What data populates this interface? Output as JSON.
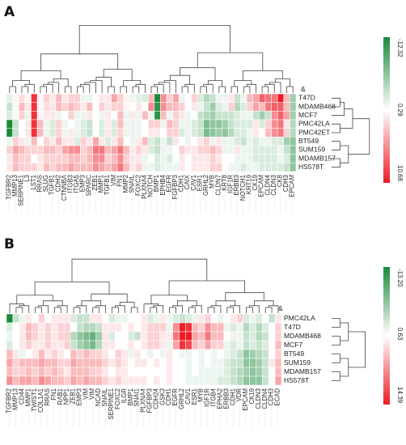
{
  "chart_data": [
    {
      "type": "heatmap",
      "panel_label": "A",
      "color_scale": {
        "max_label": "-12.32",
        "mid_label": "0.29",
        "min_label": "10.68",
        "max_color": "#1a8a3a",
        "mid_color": "#ffffff",
        "min_color": "#ee1b24"
      },
      "row_dendrogram_marker": "&",
      "rows": [
        "T47D",
        "MDAMB468",
        "MCF7",
        "PMC42LA",
        "PMC42ET",
        "BT549",
        "SUM159",
        "MDAMB157",
        "HS578T"
      ],
      "columns": [
        "TGFBR2",
        "MMP13",
        "SERPINE1",
        "L3",
        "LST1",
        "RRAS",
        "SLUG",
        "TGFB1",
        "CDH2",
        "CTNNBA",
        "ITGB3",
        "ITGA5",
        "EMP3",
        "SPARC",
        "ZEB1",
        "MMP1",
        "TGFB1",
        "VIM",
        "FN1",
        "MMP2",
        "SNAIL",
        "FOXC2",
        "PLXNA4",
        "NOTCH",
        "BMP1",
        "EPHB4",
        "EGFR",
        "FGFBP3",
        "CDH1",
        "CAIX",
        "CAV1",
        "ESR1",
        "GRHL2",
        "MYB",
        "CLDN7",
        "KRT8",
        "IGF1R",
        "ERBB3",
        "NOTCH1",
        "KRT19",
        "CK19",
        "EPCAM",
        "CLDN4",
        "CLDN3",
        "CK8",
        "CDH3",
        "EPCAM"
      ],
      "values": [
        [
          -1.5,
          0.5,
          1.5,
          0.5,
          9,
          0.5,
          2,
          1,
          3,
          1,
          2,
          2,
          -1,
          -1,
          0,
          1,
          1,
          4,
          2,
          0.5,
          -1,
          -1.5,
          -2,
          3,
          -12,
          5,
          2,
          4,
          -1,
          0,
          2,
          -2,
          -4,
          -3,
          -1,
          -1,
          1,
          -3,
          -1,
          3,
          4,
          7,
          6,
          6,
          10,
          3,
          -5
        ],
        [
          -3,
          -0.5,
          3,
          1,
          9,
          0.5,
          1.5,
          1,
          3,
          2,
          3,
          2,
          1,
          3,
          0,
          2,
          1,
          2,
          2,
          0.5,
          0,
          1,
          0,
          5,
          -11,
          5,
          3,
          3,
          2,
          0,
          1,
          -1,
          -3,
          -5,
          -2,
          -1,
          2,
          -4,
          -2,
          2,
          4,
          3,
          6,
          7,
          7,
          3,
          -5
        ],
        [
          -2,
          -0.5,
          2,
          -1,
          9,
          0.5,
          1,
          1,
          -1,
          0,
          2,
          -1,
          -1,
          1,
          0,
          -1,
          1,
          0,
          3,
          -1,
          1,
          -1,
          3,
          -1,
          -11,
          3,
          -1,
          2,
          1,
          -1,
          0,
          -3,
          -4,
          -5,
          -3,
          -3,
          -3,
          -2,
          -1,
          -1,
          -3,
          -5,
          -3,
          5,
          7,
          4,
          -5
        ],
        [
          -12,
          -3,
          0,
          1,
          9,
          3,
          -1,
          -2,
          2,
          -1,
          0,
          -1,
          -2,
          -3,
          0,
          -2,
          1,
          -2,
          3,
          -1,
          -1,
          -1,
          0,
          2,
          2,
          -1,
          3,
          2,
          -1,
          -1,
          -2,
          -3,
          -7,
          -6,
          -6,
          -5,
          -3,
          -2,
          -2,
          -2,
          1,
          -2,
          2,
          5,
          6,
          1,
          -4
        ],
        [
          -12,
          -3,
          0,
          1,
          9,
          3,
          -1,
          -2,
          2,
          -1,
          1,
          -1,
          -2,
          -3,
          0,
          -2,
          1,
          -2,
          2,
          -1,
          -1,
          -1,
          0,
          1,
          1,
          0,
          2,
          2,
          -2,
          -1,
          -2,
          -3,
          -7,
          -6,
          -5,
          -6,
          -4,
          -2,
          -2,
          -1,
          1,
          0,
          3,
          5,
          6,
          2,
          -4
        ],
        [
          -1,
          2,
          1,
          -1,
          3,
          0,
          2,
          1,
          3,
          1,
          1,
          -2,
          2,
          1,
          4,
          1,
          -2,
          1,
          3,
          0,
          -1,
          1,
          3,
          -2,
          -3,
          -1,
          -3,
          1,
          0,
          -1,
          0,
          1,
          2,
          -1,
          1,
          -1,
          -1,
          -2,
          -3,
          -1,
          -2,
          -1,
          -1,
          -2,
          -2,
          -5,
          -6
        ],
        [
          2,
          4,
          3,
          2,
          2,
          2,
          3,
          3,
          2,
          4,
          5,
          5,
          2,
          3,
          6,
          6,
          3,
          4,
          6,
          3,
          1,
          2,
          1,
          -2,
          -3,
          -1,
          -1,
          0,
          2,
          1,
          1,
          2,
          2,
          3,
          2,
          -1,
          -1,
          1,
          -1,
          -1,
          -2,
          -2,
          -2,
          -2,
          -1,
          -3,
          -6
        ],
        [
          1,
          3,
          2,
          2,
          0,
          1,
          2,
          2,
          2,
          2,
          3,
          3,
          2,
          3,
          5,
          5,
          2,
          3,
          5,
          2,
          1,
          1,
          -1,
          0,
          -2,
          -1,
          -2,
          0,
          1,
          0,
          1,
          1,
          1,
          2,
          1,
          0,
          0,
          -1,
          -1,
          -1,
          -2,
          -2,
          -2,
          -2,
          -1,
          -2,
          -6
        ],
        [
          1,
          3,
          2,
          2,
          2,
          1,
          3,
          2,
          3,
          3,
          4,
          3,
          3,
          3,
          5,
          4,
          3,
          4,
          6,
          3,
          1,
          2,
          -1,
          -1,
          -2,
          -1,
          -1,
          -1,
          1,
          0,
          1,
          1,
          1,
          2,
          2,
          0,
          -1,
          -1,
          -2,
          -1,
          -1,
          -2,
          -2,
          -2,
          -2,
          -3,
          -6
        ]
      ]
    },
    {
      "type": "heatmap",
      "panel_label": "B",
      "color_scale": {
        "max_label": "-13.20",
        "mid_label": "0.63",
        "min_label": "14.39",
        "max_color": "#1a8a3a",
        "mid_color": "#ffffff",
        "min_color": "#ee1b24"
      },
      "row_dendrogram_marker": "&",
      "rows": [
        "PMC42LA",
        "T47D",
        "MDAMB468",
        "MCF7",
        "BT549",
        "SUM159",
        "MDAMB157",
        "HS578T"
      ],
      "columns": [
        "TGFBR2",
        "MMP13",
        "CD44",
        "MMP1",
        "TWIST1",
        "COL1A1",
        "RRAS",
        "FN1",
        "RAB1",
        "NPP1",
        "ZEB1",
        "EMP3",
        "VIM",
        "VIM",
        "NCAD",
        "SNAIL",
        "SERPINE1",
        "FOXC2",
        "ILGR",
        "BMP1",
        "SNAI1",
        "PLXNA4",
        "FGFBP3",
        "CDH24",
        "GSK3",
        "CDH1",
        "EGFR",
        "GRHL2",
        "CAV1",
        "ESR1",
        "MYB",
        "IGF1R",
        "ITGB4",
        "EPHA2",
        "ERBB3",
        "CDH1",
        "VDR",
        "EPCAM",
        "CK19",
        "CLDN3",
        "CLDN4",
        "CDH3",
        "ECAD"
      ],
      "values": [
        [
          -13,
          -3,
          -1,
          1,
          0,
          2,
          0,
          1,
          1,
          1,
          -2,
          -3,
          -3,
          1,
          1,
          0,
          -2,
          -1,
          -1,
          0,
          0,
          1,
          -2,
          -1,
          1,
          -1,
          -2,
          -3,
          -2,
          -1,
          1,
          2,
          0,
          -1,
          0,
          1,
          2,
          -2,
          -1,
          -2,
          0,
          -3,
          1
        ],
        [
          -2,
          0,
          1,
          3,
          2,
          1,
          2,
          1,
          2,
          2,
          0,
          -3,
          -4,
          -4,
          -3,
          1,
          1,
          1,
          0,
          1,
          0,
          1,
          2,
          2,
          2,
          -1,
          5,
          10,
          9,
          3,
          2,
          5,
          3,
          3,
          -1,
          -2,
          -1,
          -4,
          -2,
          -4,
          -2,
          0,
          2
        ],
        [
          -1,
          0,
          1,
          3,
          2,
          1,
          2,
          1,
          2,
          2,
          -4,
          -6,
          -7,
          -8,
          -5,
          1,
          -2,
          0,
          0,
          -2,
          -3,
          1,
          2,
          2,
          1,
          1,
          6,
          11,
          10,
          4,
          3,
          6,
          3,
          3,
          0,
          -1,
          -1,
          -3,
          -2,
          -4,
          -3,
          0,
          2
        ],
        [
          -2,
          0,
          1,
          2,
          1,
          1,
          2,
          1,
          1,
          2,
          -3,
          -5,
          -6,
          -7,
          -4,
          1,
          1,
          0,
          0,
          1,
          0,
          1,
          2,
          2,
          1,
          -1,
          4,
          9,
          8,
          3,
          2,
          4,
          2,
          2,
          -1,
          -2,
          -1,
          -3,
          -2,
          -3,
          -2,
          0,
          3
        ],
        [
          3,
          1,
          -1,
          0,
          1,
          3,
          1,
          2,
          1,
          0,
          3,
          2,
          3,
          2,
          2,
          1,
          0,
          2,
          1,
          -1,
          1,
          0,
          -1,
          0,
          -1,
          1,
          0,
          -1,
          -1,
          0,
          -1,
          0,
          -1,
          0,
          -1,
          -2,
          -3,
          -6,
          -5,
          -4,
          -3,
          0,
          2
        ],
        [
          4,
          2,
          3,
          3,
          3,
          4,
          3,
          3,
          2,
          2,
          4,
          3,
          3,
          3,
          3,
          2,
          1,
          2,
          1,
          0,
          1,
          1,
          0,
          1,
          0,
          1,
          0,
          0,
          -1,
          0,
          -1,
          0,
          -1,
          -1,
          -2,
          -3,
          -3,
          -6,
          -6,
          -5,
          -3,
          1,
          3
        ],
        [
          3,
          2,
          2,
          3,
          2,
          3,
          2,
          3,
          2,
          1,
          3,
          3,
          3,
          2,
          2,
          1,
          0,
          1,
          1,
          0,
          0,
          0,
          0,
          0,
          0,
          1,
          0,
          0,
          -1,
          0,
          -1,
          -1,
          -1,
          -1,
          -2,
          -3,
          -4,
          -5,
          -6,
          -5,
          -3,
          0,
          3
        ],
        [
          5,
          3,
          4,
          4,
          3,
          5,
          4,
          3,
          3,
          2,
          4,
          3,
          4,
          3,
          3,
          2,
          1,
          2,
          1,
          1,
          1,
          1,
          0,
          1,
          0,
          1,
          0,
          0,
          -1,
          -1,
          -1,
          -1,
          -1,
          -2,
          -2,
          -3,
          -4,
          -6,
          -6,
          -6,
          -3,
          0,
          4
        ]
      ]
    }
  ]
}
